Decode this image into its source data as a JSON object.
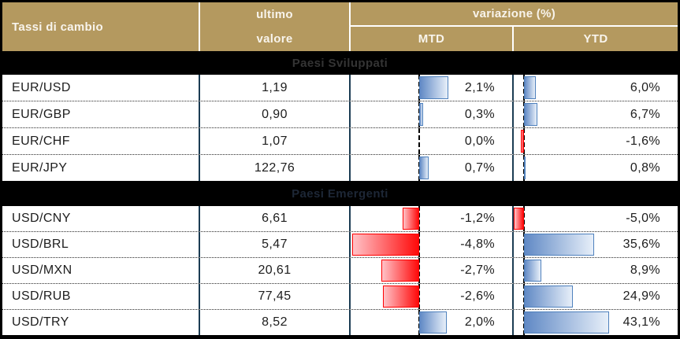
{
  "header": {
    "title": "Tassi di cambio",
    "value_col_line1": "ultimo",
    "value_col_line2": "valore",
    "variation_col": "variazione (%)",
    "mtd": "MTD",
    "ytd": "YTD"
  },
  "colors": {
    "header_bg": "#B4995F",
    "header_text": "#F8F4EC",
    "band_bg": "#000000",
    "column_separator": "#1B3C53",
    "body_text": "#1D1D1D",
    "positive_bar_border": "#4F81BD",
    "positive_bar_gradient_start": "#6089C5",
    "positive_bar_gradient_end": "#E7EFF9",
    "negative_bar_border": "#FE0000",
    "negative_bar_gradient_start": "#FFC2C7",
    "negative_bar_gradient_end": "#FF0A0A"
  },
  "sections": [
    {
      "label": "Paesi Sviluppati",
      "label_color": "#343434",
      "rows": [
        {
          "pair": "EUR/USD",
          "value": "1,19",
          "mtd": 2.1,
          "mtd_display": "2,1%",
          "ytd": 6.0,
          "ytd_display": "6,0%"
        },
        {
          "pair": "EUR/GBP",
          "value": "0,90",
          "mtd": 0.3,
          "mtd_display": "0,3%",
          "ytd": 6.7,
          "ytd_display": "6,7%"
        },
        {
          "pair": "EUR/CHF",
          "value": "1,07",
          "mtd": 0.0,
          "mtd_display": "0,0%",
          "ytd": -1.6,
          "ytd_display": "-1,6%"
        },
        {
          "pair": "EUR/JPY",
          "value": "122,76",
          "mtd": 0.7,
          "mtd_display": "0,7%",
          "ytd": 0.8,
          "ytd_display": "0,8%"
        }
      ]
    },
    {
      "label": "Paesi Emergenti",
      "label_color": "#1D2736",
      "rows": [
        {
          "pair": "USD/CNY",
          "value": "6,61",
          "mtd": -1.2,
          "mtd_display": "-1,2%",
          "ytd": -5.0,
          "ytd_display": "-5,0%"
        },
        {
          "pair": "USD/BRL",
          "value": "5,47",
          "mtd": -4.8,
          "mtd_display": "-4,8%",
          "ytd": 35.6,
          "ytd_display": "35,6%"
        },
        {
          "pair": "USD/MXN",
          "value": "20,61",
          "mtd": -2.7,
          "mtd_display": "-2,7%",
          "ytd": 8.9,
          "ytd_display": "8,9%"
        },
        {
          "pair": "USD/RUB",
          "value": "77,45",
          "mtd": -2.6,
          "mtd_display": "-2,6%",
          "ytd": 24.9,
          "ytd_display": "24,9%"
        },
        {
          "pair": "USD/TRY",
          "value": "8,52",
          "mtd": 2.0,
          "mtd_display": "2,0%",
          "ytd": 43.1,
          "ytd_display": "43,1%"
        }
      ]
    }
  ],
  "chart_data": {
    "type": "table",
    "title": "Tassi di cambio",
    "columns": [
      "Tassi di cambio",
      "ultimo valore",
      "variazione (%) MTD",
      "variazione (%) YTD"
    ],
    "groups": [
      {
        "group": "Paesi Sviluppati",
        "rows": [
          {
            "pair": "EUR/USD",
            "ultimo_valore": 1.19,
            "mtd_pct": 2.1,
            "ytd_pct": 6.0
          },
          {
            "pair": "EUR/GBP",
            "ultimo_valore": 0.9,
            "mtd_pct": 0.3,
            "ytd_pct": 6.7
          },
          {
            "pair": "EUR/CHF",
            "ultimo_valore": 1.07,
            "mtd_pct": 0.0,
            "ytd_pct": -1.6
          },
          {
            "pair": "EUR/JPY",
            "ultimo_valore": 122.76,
            "mtd_pct": 0.7,
            "ytd_pct": 0.8
          }
        ]
      },
      {
        "group": "Paesi Emergenti",
        "rows": [
          {
            "pair": "USD/CNY",
            "ultimo_valore": 6.61,
            "mtd_pct": -1.2,
            "ytd_pct": -5.0
          },
          {
            "pair": "USD/BRL",
            "ultimo_valore": 5.47,
            "mtd_pct": -4.8,
            "ytd_pct": 35.6
          },
          {
            "pair": "USD/MXN",
            "ultimo_valore": 20.61,
            "mtd_pct": -2.7,
            "ytd_pct": 8.9
          },
          {
            "pair": "USD/RUB",
            "ultimo_valore": 77.45,
            "mtd_pct": -2.6,
            "ytd_pct": 24.9
          },
          {
            "pair": "USD/TRY",
            "ultimo_valore": 8.52,
            "mtd_pct": 2.0,
            "ytd_pct": 43.1
          }
        ]
      }
    ],
    "bar_encoding": {
      "columns_with_bars": [
        "MTD",
        "YTD"
      ],
      "positive": "blue gradient data bar extending right of dashed zero axis",
      "negative": "red gradient data bar extending left of dashed zero axis"
    }
  }
}
